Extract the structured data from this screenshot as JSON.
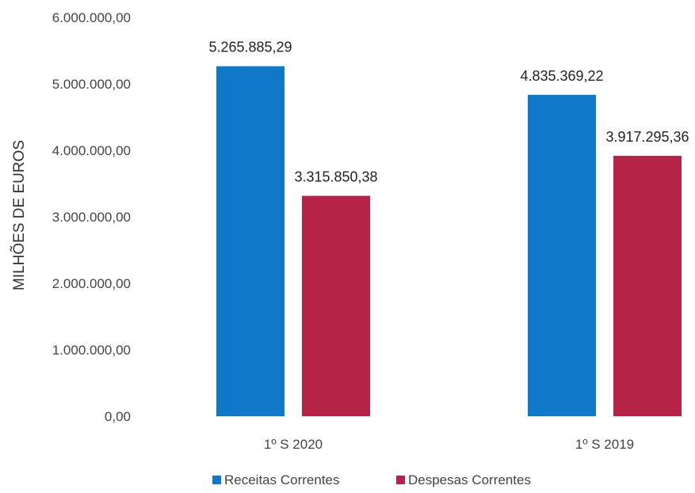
{
  "chart_data": {
    "type": "bar",
    "ylabel": "MILHÕES DE EUROS",
    "xlabel": "",
    "ylim": [
      0,
      6000000
    ],
    "yticks": [
      0,
      1000000,
      2000000,
      3000000,
      4000000,
      5000000,
      6000000
    ],
    "ytick_labels": [
      "0,00",
      "1.000.000,00",
      "2.000.000,00",
      "3.000.000,00",
      "4.000.000,00",
      "5.000.000,00",
      "6.000.000,00"
    ],
    "categories": [
      "1º S 2020",
      "1º S 2019"
    ],
    "series": [
      {
        "name": "Receitas Correntes",
        "color": "#0f78c9",
        "values": [
          5265885.29,
          4835369.22
        ],
        "labels": [
          "5.265.885,29",
          "4.835.369,22"
        ]
      },
      {
        "name": "Despesas Correntes",
        "color": "#b52446",
        "values": [
          3315850.38,
          3917295.36
        ],
        "labels": [
          "3.315.850,38",
          "3.917.295,36"
        ]
      }
    ],
    "grid": false,
    "legend_position": "bottom"
  }
}
